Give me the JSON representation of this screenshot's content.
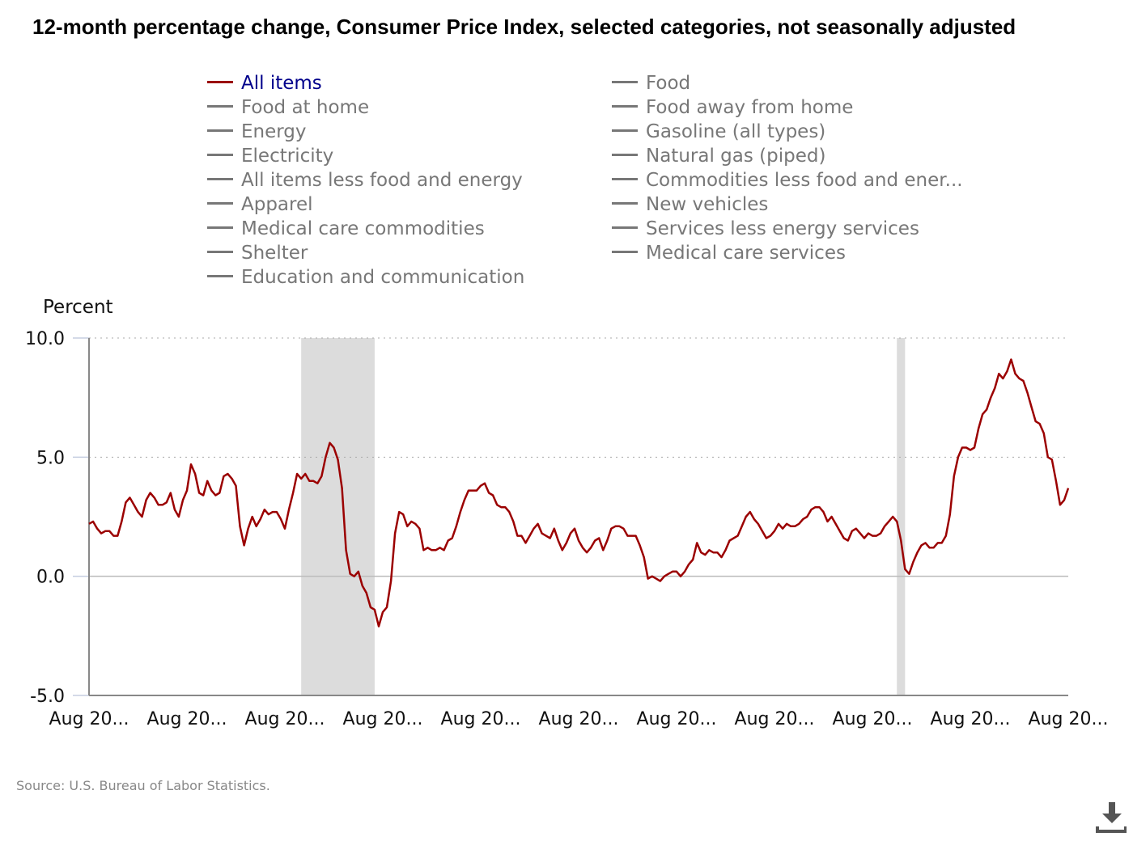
{
  "title": "12-month percentage change, Consumer Price Index, selected categories, not seasonally adjusted",
  "legend": {
    "left": [
      "All items",
      "Food at home",
      "Energy",
      "Electricity",
      "All items less food and energy",
      "Apparel",
      "Medical care commodities",
      "Shelter",
      "Education and communication"
    ],
    "right": [
      "Food",
      "Food away from home",
      "Gasoline (all types)",
      "Natural gas (piped)",
      "Commodities less food and ener...",
      "New vehicles",
      "Services less energy services",
      "Medical care services"
    ],
    "active": "All items"
  },
  "source": "Source: U.S. Bureau of Labor Statistics.",
  "download_icon": "download-icon",
  "chart_data": {
    "type": "line",
    "ylabel": "Percent",
    "ylim": [
      -5,
      10
    ],
    "yticks": [
      "10.0",
      "5.0",
      "0.0",
      "-5.0"
    ],
    "ytick_values": [
      10,
      5,
      0,
      -5
    ],
    "xticks": [
      "Aug 20...",
      "Aug 20...",
      "Aug 20...",
      "Aug 20...",
      "Aug 20...",
      "Aug 20...",
      "Aug 20...",
      "Aug 20...",
      "Aug 20...",
      "Aug 20...",
      "Aug 20..."
    ],
    "x_start": "2003-08",
    "x_end": "2023-08",
    "grid": "horizontal dotted",
    "colors": {
      "series": "#9b0000",
      "recession": "#dcdcdc",
      "inactive": "#777777"
    },
    "recessions": [
      [
        "2007-12",
        "2009-06"
      ],
      [
        "2020-02",
        "2020-04"
      ]
    ],
    "series": [
      {
        "name": "All items",
        "values": [
          2.2,
          2.3,
          2.0,
          1.8,
          1.9,
          1.9,
          1.7,
          1.7,
          2.3,
          3.1,
          3.3,
          3.0,
          2.7,
          2.5,
          3.2,
          3.5,
          3.3,
          3.0,
          3.0,
          3.1,
          3.5,
          2.8,
          2.5,
          3.2,
          3.6,
          4.7,
          4.3,
          3.5,
          3.4,
          4.0,
          3.6,
          3.4,
          3.5,
          4.2,
          4.3,
          4.1,
          3.8,
          2.1,
          1.3,
          2.0,
          2.5,
          2.1,
          2.4,
          2.8,
          2.6,
          2.7,
          2.7,
          2.4,
          2.0,
          2.8,
          3.5,
          4.3,
          4.1,
          4.3,
          4.0,
          4.0,
          3.9,
          4.2,
          5.0,
          5.6,
          5.4,
          4.9,
          3.7,
          1.1,
          0.1,
          0.0,
          0.2,
          -0.4,
          -0.7,
          -1.3,
          -1.4,
          -2.1,
          -1.5,
          -1.3,
          -0.2,
          1.8,
          2.7,
          2.6,
          2.1,
          2.3,
          2.2,
          2.0,
          1.1,
          1.2,
          1.1,
          1.1,
          1.2,
          1.1,
          1.5,
          1.6,
          2.1,
          2.7,
          3.2,
          3.6,
          3.6,
          3.6,
          3.8,
          3.9,
          3.5,
          3.4,
          3.0,
          2.9,
          2.9,
          2.7,
          2.3,
          1.7,
          1.7,
          1.4,
          1.7,
          2.0,
          2.2,
          1.8,
          1.7,
          1.6,
          2.0,
          1.5,
          1.1,
          1.4,
          1.8,
          2.0,
          1.5,
          1.2,
          1.0,
          1.2,
          1.5,
          1.6,
          1.1,
          1.5,
          2.0,
          2.1,
          2.1,
          2.0,
          1.7,
          1.7,
          1.7,
          1.3,
          0.8,
          -0.1,
          0.0,
          -0.1,
          -0.2,
          0.0,
          0.1,
          0.2,
          0.2,
          0.0,
          0.2,
          0.5,
          0.7,
          1.4,
          1.0,
          0.9,
          1.1,
          1.0,
          1.0,
          0.8,
          1.1,
          1.5,
          1.6,
          1.7,
          2.1,
          2.5,
          2.7,
          2.4,
          2.2,
          1.9,
          1.6,
          1.7,
          1.9,
          2.2,
          2.0,
          2.2,
          2.1,
          2.1,
          2.2,
          2.4,
          2.5,
          2.8,
          2.9,
          2.9,
          2.7,
          2.3,
          2.5,
          2.2,
          1.9,
          1.6,
          1.5,
          1.9,
          2.0,
          1.8,
          1.6,
          1.8,
          1.7,
          1.7,
          1.8,
          2.1,
          2.3,
          2.5,
          2.3,
          1.5,
          0.3,
          0.1,
          0.6,
          1.0,
          1.3,
          1.4,
          1.2,
          1.2,
          1.4,
          1.4,
          1.7,
          2.6,
          4.2,
          5.0,
          5.4,
          5.4,
          5.3,
          5.4,
          6.2,
          6.8,
          7.0,
          7.5,
          7.9,
          8.5,
          8.3,
          8.6,
          9.1,
          8.5,
          8.3,
          8.2,
          7.7,
          7.1,
          6.5,
          6.4,
          6.0,
          5.0,
          4.9,
          4.0,
          3.0,
          3.2,
          3.7
        ]
      }
    ]
  }
}
